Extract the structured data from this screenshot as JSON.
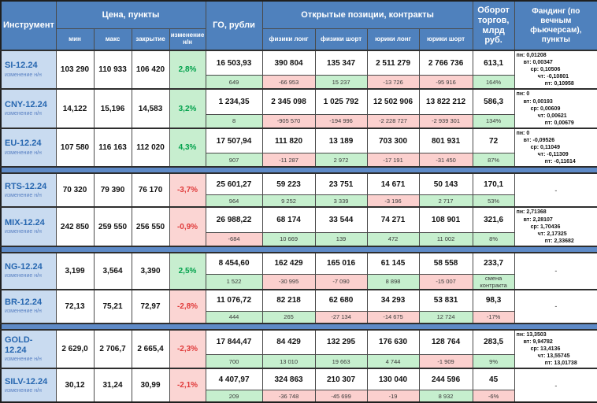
{
  "colors": {
    "header_bg": "#4f81bd",
    "instrument_bg": "#c9dbf0",
    "green_bg": "#c6efce",
    "green_text": "#00a14b",
    "red_bg": "#fbd0ce",
    "red_text": "#e03a3a",
    "band_bg": "#5e8ac7"
  },
  "header": {
    "instrument": "Инструмент",
    "price_group": "Цена, пункты",
    "price_cols": [
      "мин",
      "макс",
      "закрытие",
      "изменение н/н"
    ],
    "go": "ГО, рубли",
    "positions_group": "Открытые позиции, контракты",
    "position_cols": [
      "физики лонг",
      "физики шорт",
      "юрики лонг",
      "юрики шорт"
    ],
    "turnover": "Оборот торгов, млрд руб.",
    "funding": "Фандинг (по вечным фьючерсам), пункты"
  },
  "sub_label": "изменение н/н",
  "rows": [
    {
      "name": "SI-12.24",
      "min": "103 290",
      "max": "110 933",
      "close": "106 420",
      "change": {
        "value": "2,8%",
        "dir": "up"
      },
      "go": {
        "value": "16 503,93",
        "sub": "649",
        "sub_dir": "up"
      },
      "positions": [
        {
          "value": "390 804",
          "sub": "-66 953",
          "sub_dir": "down"
        },
        {
          "value": "135 347",
          "sub": "15 237",
          "sub_dir": "up"
        },
        {
          "value": "2 511 279",
          "sub": "-13 726",
          "sub_dir": "down"
        },
        {
          "value": "2 766 736",
          "sub": "-95 916",
          "sub_dir": "down"
        }
      ],
      "turnover": {
        "value": "613,1",
        "sub": "164%",
        "sub_dir": "up"
      },
      "funding": [
        "пн: 0,01208",
        "вт: 0,00347",
        "ср: 0,10506",
        "чт: -0,10801",
        "пт: 0,10958"
      ],
      "band_after": false
    },
    {
      "name": "CNY-12.24",
      "min": "14,122",
      "max": "15,196",
      "close": "14,583",
      "change": {
        "value": "3,2%",
        "dir": "up"
      },
      "go": {
        "value": "1 234,35",
        "sub": "8",
        "sub_dir": "up"
      },
      "positions": [
        {
          "value": "2 345 098",
          "sub": "-905 570",
          "sub_dir": "down"
        },
        {
          "value": "1 025 792",
          "sub": "-194 996",
          "sub_dir": "down"
        },
        {
          "value": "12 502 906",
          "sub": "-2 228 727",
          "sub_dir": "down"
        },
        {
          "value": "13 822 212",
          "sub": "-2 939 301",
          "sub_dir": "down"
        }
      ],
      "turnover": {
        "value": "586,3",
        "sub": "134%",
        "sub_dir": "up"
      },
      "funding": [
        "пн: 0",
        "вт: 0,00193",
        "ср: 0,00609",
        "чт: 0,00621",
        "пт: 0,00679"
      ],
      "band_after": false
    },
    {
      "name": "EU-12.24",
      "min": "107 580",
      "max": "116 163",
      "close": "112 020",
      "change": {
        "value": "4,3%",
        "dir": "up"
      },
      "go": {
        "value": "17 507,94",
        "sub": "907",
        "sub_dir": "up"
      },
      "positions": [
        {
          "value": "111 820",
          "sub": "-11 287",
          "sub_dir": "down"
        },
        {
          "value": "13 189",
          "sub": "2 972",
          "sub_dir": "up"
        },
        {
          "value": "703 300",
          "sub": "-17 191",
          "sub_dir": "down"
        },
        {
          "value": "801 931",
          "sub": "-31 450",
          "sub_dir": "down"
        }
      ],
      "turnover": {
        "value": "72",
        "sub": "87%",
        "sub_dir": "up"
      },
      "funding": [
        "пн: 0",
        "вт: -0,09526",
        "ср: 0,11049",
        "чт: -0,11309",
        "пт: -0,11614"
      ],
      "band_after": true
    },
    {
      "name": "RTS-12.24",
      "min": "70 320",
      "max": "79 390",
      "close": "76 170",
      "change": {
        "value": "-3,7%",
        "dir": "down"
      },
      "go": {
        "value": "25 601,27",
        "sub": "964",
        "sub_dir": "up"
      },
      "positions": [
        {
          "value": "59 223",
          "sub": "9 252",
          "sub_dir": "up"
        },
        {
          "value": "23 751",
          "sub": "3 339",
          "sub_dir": "up"
        },
        {
          "value": "14 671",
          "sub": "-3 196",
          "sub_dir": "down"
        },
        {
          "value": "50 143",
          "sub": "2 717",
          "sub_dir": "up"
        }
      ],
      "turnover": {
        "value": "170,1",
        "sub": "53%",
        "sub_dir": "up"
      },
      "funding": [
        "-"
      ],
      "band_after": false
    },
    {
      "name": "MIX-12.24",
      "min": "242 850",
      "max": "259 550",
      "close": "256 550",
      "change": {
        "value": "-0,9%",
        "dir": "down"
      },
      "go": {
        "value": "26 988,22",
        "sub": "-684",
        "sub_dir": "down"
      },
      "positions": [
        {
          "value": "68 174",
          "sub": "10 669",
          "sub_dir": "up"
        },
        {
          "value": "33 544",
          "sub": "139",
          "sub_dir": "up"
        },
        {
          "value": "74 271",
          "sub": "472",
          "sub_dir": "up"
        },
        {
          "value": "108 901",
          "sub": "11 002",
          "sub_dir": "up"
        }
      ],
      "turnover": {
        "value": "321,6",
        "sub": "8%",
        "sub_dir": "up"
      },
      "funding": [
        "пн: 2,71368",
        "вт: 2,28107",
        "ср: 1,70436",
        "чт: 2,17325",
        "пт: 2,33682"
      ],
      "band_after": true
    },
    {
      "name": "NG-12.24",
      "min": "3,199",
      "max": "3,564",
      "close": "3,390",
      "change": {
        "value": "2,5%",
        "dir": "up"
      },
      "go": {
        "value": "8 454,60",
        "sub": "1 522",
        "sub_dir": "up"
      },
      "positions": [
        {
          "value": "162 429",
          "sub": "-30 995",
          "sub_dir": "down"
        },
        {
          "value": "165 016",
          "sub": "-7 090",
          "sub_dir": "down"
        },
        {
          "value": "61 145",
          "sub": "8 898",
          "sub_dir": "up"
        },
        {
          "value": "58 558",
          "sub": "-15 007",
          "sub_dir": "down"
        }
      ],
      "turnover": {
        "value": "233,7",
        "sub": "смена контракта",
        "sub_dir": "up"
      },
      "funding": [
        "-"
      ],
      "band_after": false
    },
    {
      "name": "BR-12.24",
      "min": "72,13",
      "max": "75,21",
      "close": "72,97",
      "change": {
        "value": "-2,8%",
        "dir": "down"
      },
      "go": {
        "value": "11 076,72",
        "sub": "444",
        "sub_dir": "up"
      },
      "positions": [
        {
          "value": "82 218",
          "sub": "265",
          "sub_dir": "up"
        },
        {
          "value": "62 680",
          "sub": "-27 134",
          "sub_dir": "down"
        },
        {
          "value": "34 293",
          "sub": "-14 675",
          "sub_dir": "down"
        },
        {
          "value": "53 831",
          "sub": "12 724",
          "sub_dir": "up"
        }
      ],
      "turnover": {
        "value": "98,3",
        "sub": "-17%",
        "sub_dir": "down"
      },
      "funding": [
        "-"
      ],
      "band_after": true
    },
    {
      "name": "GOLD-12.24",
      "min": "2 629,0",
      "max": "2 706,7",
      "close": "2 665,4",
      "change": {
        "value": "-2,3%",
        "dir": "down"
      },
      "go": {
        "value": "17 844,47",
        "sub": "700",
        "sub_dir": "up"
      },
      "positions": [
        {
          "value": "84 429",
          "sub": "13 010",
          "sub_dir": "up"
        },
        {
          "value": "132 295",
          "sub": "19 663",
          "sub_dir": "up"
        },
        {
          "value": "176 630",
          "sub": "4 744",
          "sub_dir": "up"
        },
        {
          "value": "128 764",
          "sub": "-1 909",
          "sub_dir": "down"
        }
      ],
      "turnover": {
        "value": "283,5",
        "sub": "9%",
        "sub_dir": "up"
      },
      "funding": [
        "пн: 13,3503",
        "вт: 9,94782",
        "ср: 13,4136",
        "чт: 13,55745",
        "пт: 13,01738"
      ],
      "band_after": false
    },
    {
      "name": "SILV-12.24",
      "min": "30,12",
      "max": "31,24",
      "close": "30,99",
      "change": {
        "value": "-2,1%",
        "dir": "down"
      },
      "go": {
        "value": "4 407,97",
        "sub": "209",
        "sub_dir": "up"
      },
      "positions": [
        {
          "value": "324 863",
          "sub": "-36 748",
          "sub_dir": "down"
        },
        {
          "value": "210 307",
          "sub": "-45 699",
          "sub_dir": "down"
        },
        {
          "value": "130 040",
          "sub": "-19",
          "sub_dir": "down"
        },
        {
          "value": "244 596",
          "sub": "8 932",
          "sub_dir": "up"
        }
      ],
      "turnover": {
        "value": "45",
        "sub": "-6%",
        "sub_dir": "down"
      },
      "funding": [
        "-"
      ],
      "band_after": false
    }
  ]
}
